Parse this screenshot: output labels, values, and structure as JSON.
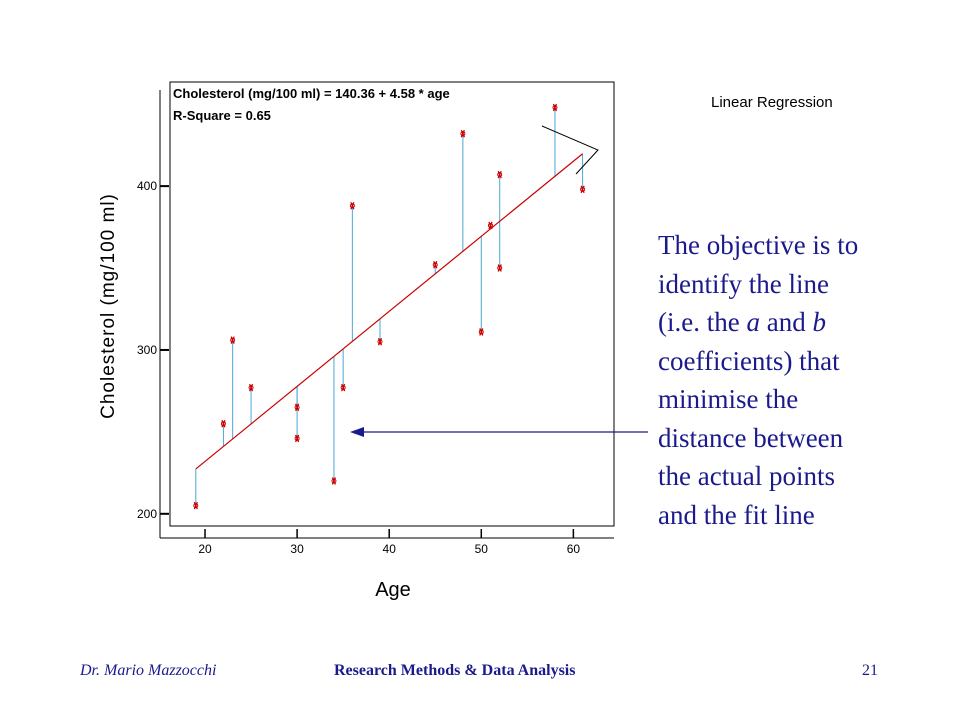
{
  "chart_data": {
    "type": "scatter",
    "xlabel": "Age",
    "ylabel": "Cholesterol (mg/100 ml)",
    "x_ticks": [
      20,
      30,
      40,
      50,
      60
    ],
    "y_ticks": [
      200,
      300,
      400
    ],
    "xlim": [
      18,
      63
    ],
    "ylim": [
      195,
      455
    ],
    "grid": false,
    "legend": "none",
    "equation_text": "Cholesterol (mg/100 ml) = 140.36 + 4.58 * age",
    "r_square_text": "R-Square = 0.65",
    "fit_label": "Linear Regression",
    "fit": {
      "intercept": 140.36,
      "slope": 4.58
    },
    "points": [
      {
        "x": 19,
        "y": 205
      },
      {
        "x": 22,
        "y": 255
      },
      {
        "x": 23,
        "y": 306
      },
      {
        "x": 25,
        "y": 277
      },
      {
        "x": 30,
        "y": 265
      },
      {
        "x": 30,
        "y": 246
      },
      {
        "x": 34,
        "y": 220
      },
      {
        "x": 35,
        "y": 277
      },
      {
        "x": 36,
        "y": 388
      },
      {
        "x": 39,
        "y": 305
      },
      {
        "x": 45,
        "y": 352
      },
      {
        "x": 48,
        "y": 432
      },
      {
        "x": 50,
        "y": 311
      },
      {
        "x": 51,
        "y": 376
      },
      {
        "x": 52,
        "y": 407
      },
      {
        "x": 52,
        "y": 350
      },
      {
        "x": 58,
        "y": 448
      },
      {
        "x": 61,
        "y": 398
      }
    ],
    "colors": {
      "points": "#cc0000",
      "fit_line": "#cc0000",
      "residuals": "#4aa8d8",
      "axis": "#000000"
    }
  },
  "slide": {
    "explanation_lines": [
      {
        "text": "The objective is to"
      },
      {
        "text": "identify the line"
      },
      {
        "pre": "(i.e. the ",
        "em1": "a",
        "mid": " and ",
        "em2": "b"
      },
      {
        "text": "coefficients) that"
      },
      {
        "text": "minimise the"
      },
      {
        "text": "distance between"
      },
      {
        "text": "the actual points"
      },
      {
        "text": "and the fit line"
      }
    ],
    "footer_left": "Dr. Mario Mazzocchi",
    "footer_center": "Research Methods & Data Analysis",
    "footer_right": "21",
    "text_color": "#1a1a8c"
  }
}
